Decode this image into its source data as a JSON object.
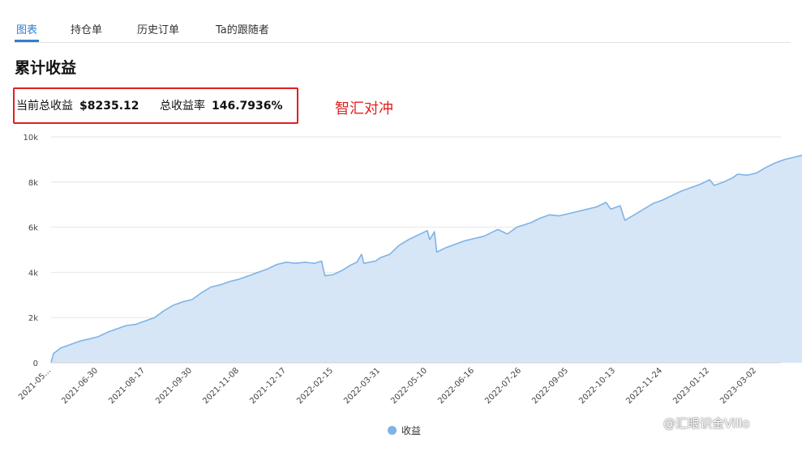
{
  "tabs": [
    "图表",
    "持仓单",
    "历史订单",
    "Ta的跟随者"
  ],
  "active_tab": 0,
  "section_title": "累计收益",
  "stats": {
    "total_profit_label": "当前总收益",
    "total_profit_value": "$8235.12",
    "return_rate_label": "总收益率",
    "return_rate_value": "146.7936%"
  },
  "overlay_note": "智汇对冲",
  "watermark": "@汇眼识金Villo",
  "colors": {
    "accent": "#2f7fd0",
    "line": "#7fb3e6",
    "area": "#d6e6f7",
    "highlight": "#e02020"
  },
  "chart_data": {
    "type": "area",
    "title": "",
    "xlabel": "",
    "ylabel": "",
    "ylim": [
      0,
      10000
    ],
    "yticks": [
      0,
      2000,
      4000,
      6000,
      8000,
      10000
    ],
    "ytick_labels": [
      "0",
      "2k",
      "4k",
      "6k",
      "8k",
      "10k"
    ],
    "xtick_labels": [
      "2021-05...",
      "2021-06-30",
      "2021-08-17",
      "2021-09-30",
      "2021-11-08",
      "2021-12-17",
      "2022-02-15",
      "2022-03-31",
      "2022-05-10",
      "2022-06-16",
      "2022-07-26",
      "2022-09-05",
      "2022-10-13",
      "2022-11-24",
      "2023-01-12",
      "2023-03-02"
    ],
    "grid": true,
    "legend_position": "bottom-center",
    "series": [
      {
        "name": "收益",
        "points": [
          [
            0,
            0
          ],
          [
            0.05,
            400
          ],
          [
            0.2,
            650
          ],
          [
            0.4,
            800
          ],
          [
            0.6,
            950
          ],
          [
            0.8,
            1050
          ],
          [
            1.0,
            1150
          ],
          [
            1.2,
            1350
          ],
          [
            1.4,
            1500
          ],
          [
            1.6,
            1650
          ],
          [
            1.8,
            1700
          ],
          [
            2.0,
            1850
          ],
          [
            2.2,
            2000
          ],
          [
            2.4,
            2300
          ],
          [
            2.6,
            2550
          ],
          [
            2.8,
            2700
          ],
          [
            3.0,
            2800
          ],
          [
            3.2,
            3100
          ],
          [
            3.4,
            3350
          ],
          [
            3.6,
            3450
          ],
          [
            3.8,
            3600
          ],
          [
            4.0,
            3700
          ],
          [
            4.2,
            3850
          ],
          [
            4.4,
            4000
          ],
          [
            4.6,
            4150
          ],
          [
            4.8,
            4350
          ],
          [
            5.0,
            4450
          ],
          [
            5.2,
            4400
          ],
          [
            5.4,
            4450
          ],
          [
            5.6,
            4400
          ],
          [
            5.75,
            4500
          ],
          [
            5.82,
            3850
          ],
          [
            6.0,
            3900
          ],
          [
            6.2,
            4100
          ],
          [
            6.35,
            4300
          ],
          [
            6.5,
            4450
          ],
          [
            6.6,
            4800
          ],
          [
            6.65,
            4400
          ],
          [
            6.9,
            4500
          ],
          [
            7.0,
            4650
          ],
          [
            7.2,
            4800
          ],
          [
            7.4,
            5200
          ],
          [
            7.6,
            5450
          ],
          [
            7.8,
            5650
          ],
          [
            8.0,
            5850
          ],
          [
            8.05,
            5450
          ],
          [
            8.15,
            5800
          ],
          [
            8.2,
            4900
          ],
          [
            8.4,
            5100
          ],
          [
            8.6,
            5250
          ],
          [
            8.8,
            5400
          ],
          [
            9.0,
            5500
          ],
          [
            9.2,
            5600
          ],
          [
            9.4,
            5800
          ],
          [
            9.5,
            5900
          ],
          [
            9.7,
            5700
          ],
          [
            9.9,
            6000
          ],
          [
            10.2,
            6200
          ],
          [
            10.4,
            6400
          ],
          [
            10.6,
            6550
          ],
          [
            10.8,
            6500
          ],
          [
            11.0,
            6600
          ],
          [
            11.2,
            6700
          ],
          [
            11.4,
            6800
          ],
          [
            11.6,
            6900
          ],
          [
            11.8,
            7100
          ],
          [
            11.9,
            6800
          ],
          [
            12.1,
            6950
          ],
          [
            12.2,
            6300
          ],
          [
            12.4,
            6550
          ],
          [
            12.6,
            6800
          ],
          [
            12.8,
            7050
          ],
          [
            13.0,
            7200
          ],
          [
            13.2,
            7400
          ],
          [
            13.4,
            7600
          ],
          [
            13.6,
            7750
          ],
          [
            13.8,
            7900
          ],
          [
            14.0,
            8100
          ],
          [
            14.1,
            7850
          ],
          [
            14.3,
            8000
          ],
          [
            14.5,
            8200
          ],
          [
            14.6,
            8350
          ],
          [
            14.8,
            8300
          ],
          [
            15.0,
            8400
          ],
          [
            15.2,
            8650
          ],
          [
            15.4,
            8850
          ],
          [
            15.6,
            9000
          ],
          [
            15.8,
            9100
          ],
          [
            16.0,
            9200
          ],
          [
            16.1,
            9250
          ],
          [
            16.2,
            9350
          ],
          [
            16.25,
            8850
          ],
          [
            16.3,
            8900
          ],
          [
            16.35,
            8235
          ]
        ]
      }
    ]
  }
}
